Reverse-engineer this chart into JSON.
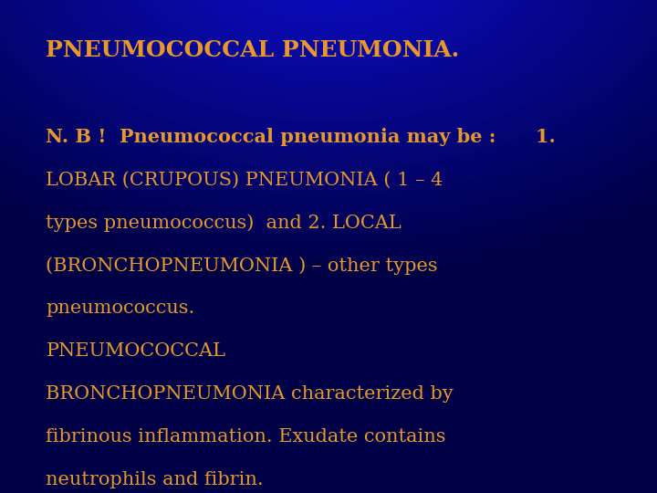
{
  "title": "PNEUMOCOCCAL PNEUMONIA.",
  "title_color": "#E8982A",
  "title_fontsize": 18,
  "body_lines": [
    {
      "text": "N. B !  Pneumococcal pneumonia may be :      1.",
      "bold": true,
      "size": 15
    },
    {
      "text": "LOBAR (CRUPOUS) PNEUMONIA ( 1 – 4",
      "bold": false,
      "size": 15
    },
    {
      "text": "types pneumococcus)  and 2. LOCAL",
      "bold": false,
      "size": 15
    },
    {
      "text": "(BRONCHOPNEUMONIA ) – other types",
      "bold": false,
      "size": 15
    },
    {
      "text": "pneumococcus.",
      "bold": false,
      "size": 15
    },
    {
      "text": "PNEUMOCOCCAL",
      "bold": false,
      "size": 15
    },
    {
      "text": "BRONCHOPNEUMONIA characterized by",
      "bold": false,
      "size": 15
    },
    {
      "text": "fibrinous inflammation. Exudate contains",
      "bold": false,
      "size": 15
    },
    {
      "text": "neutrophils and fibrin.",
      "bold": false,
      "size": 15
    }
  ],
  "body_color": "#E8982A",
  "figwidth": 7.2,
  "figheight": 5.4,
  "dpi": 100
}
